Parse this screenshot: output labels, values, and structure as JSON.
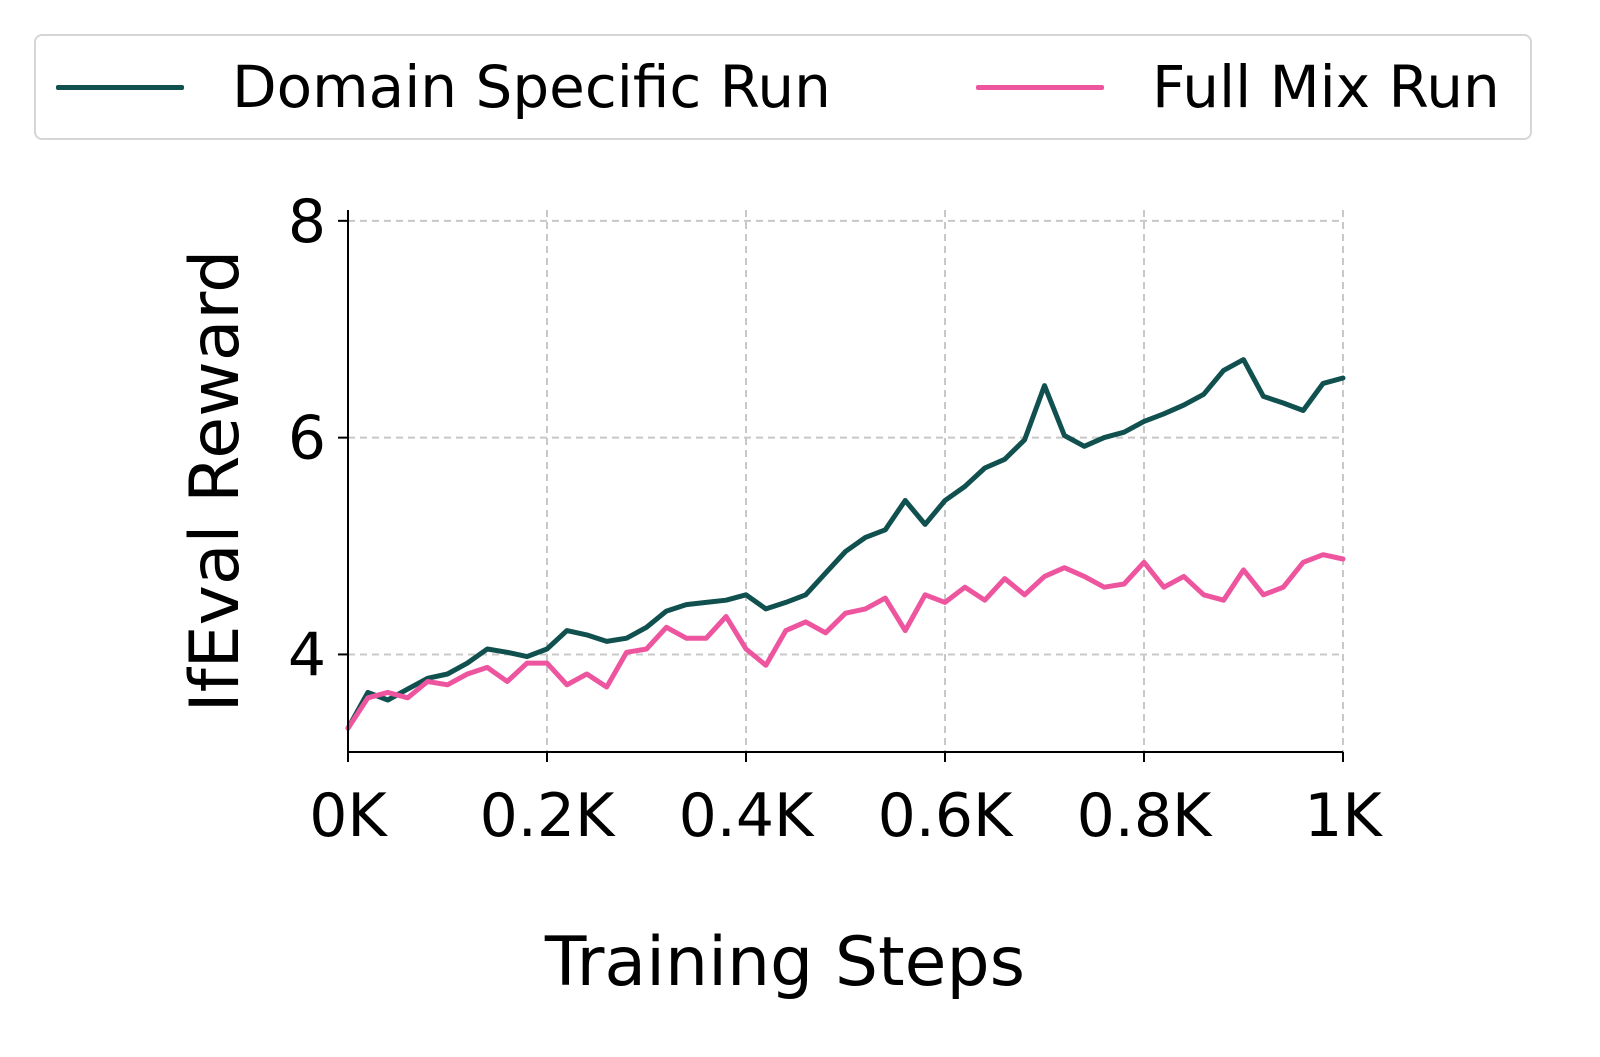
{
  "chart_data": {
    "type": "line",
    "xlabel": "Training Steps",
    "ylabel": "IfEval Reward",
    "xlim": [
      0,
      1000
    ],
    "ylim": [
      3.1,
      8.1
    ],
    "xticks": [
      0,
      200,
      400,
      600,
      800,
      1000
    ],
    "xtick_labels": [
      "0K",
      "0.2K",
      "0.4K",
      "0.6K",
      "0.8K",
      "1K"
    ],
    "yticks": [
      4,
      6,
      8
    ],
    "ytick_labels": [
      "4",
      "6",
      "8"
    ],
    "grid": true,
    "legend_position": "top",
    "x": [
      0,
      20,
      40,
      60,
      80,
      100,
      120,
      140,
      160,
      180,
      200,
      220,
      240,
      260,
      280,
      300,
      320,
      340,
      360,
      380,
      400,
      420,
      440,
      460,
      480,
      500,
      520,
      540,
      560,
      580,
      600,
      620,
      640,
      660,
      680,
      700,
      720,
      740,
      760,
      780,
      800,
      820,
      840,
      860,
      880,
      900,
      920,
      940,
      960,
      980,
      1000
    ],
    "series": [
      {
        "name": "Domain Specific Run",
        "color": "#10504f",
        "values": [
          3.32,
          3.65,
          3.58,
          3.68,
          3.78,
          3.82,
          3.92,
          4.05,
          4.02,
          3.98,
          4.05,
          4.22,
          4.18,
          4.12,
          4.15,
          4.25,
          4.4,
          4.46,
          4.48,
          4.5,
          4.55,
          4.42,
          4.48,
          4.55,
          4.75,
          4.95,
          5.08,
          5.15,
          5.42,
          5.2,
          5.42,
          5.55,
          5.72,
          5.8,
          5.98,
          6.48,
          6.02,
          5.92,
          6.0,
          6.05,
          6.15,
          6.22,
          6.3,
          6.4,
          6.62,
          6.72,
          6.38,
          6.32,
          6.25,
          6.5,
          6.55
        ]
      },
      {
        "name": "Full Mix Run",
        "color": "#ee559f",
        "values": [
          3.32,
          3.6,
          3.65,
          3.6,
          3.75,
          3.72,
          3.82,
          3.88,
          3.75,
          3.92,
          3.92,
          3.72,
          3.82,
          3.7,
          4.02,
          4.05,
          4.25,
          4.15,
          4.15,
          4.35,
          4.05,
          3.9,
          4.22,
          4.3,
          4.2,
          4.38,
          4.42,
          4.52,
          4.22,
          4.55,
          4.48,
          4.62,
          4.5,
          4.7,
          4.55,
          4.72,
          4.8,
          4.72,
          4.62,
          4.65,
          4.85,
          4.62,
          4.72,
          4.55,
          4.5,
          4.78,
          4.55,
          4.62,
          4.85,
          4.92,
          4.88
        ]
      }
    ]
  }
}
